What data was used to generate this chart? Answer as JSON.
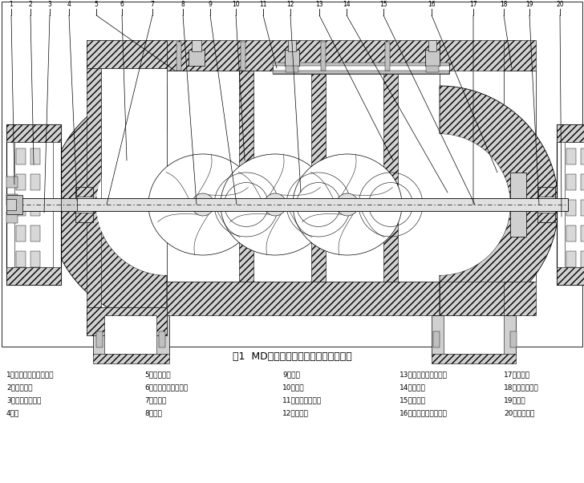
{
  "title": "图1  MD型煤矿用耐磨多级离心泵结构图",
  "bg_color": "#ffffff",
  "fig_width": 7.28,
  "fig_height": 6.02,
  "legend_col1": [
    "1、柱销弹性联轴器部件",
    "2、滚动轴承",
    "3、滚动轴承部件",
    "4、轴"
  ],
  "legend_col2": [
    "5、拉紧螺栓",
    "6、吸入段（进水段）",
    "7、密封环",
    "8、叶轮"
  ],
  "legend_col3": [
    "9、中段",
    "10、导叶",
    "11、平衡水管部件",
    "12、导叶套"
  ],
  "legend_col4": [
    "13、吐出段（出水段）",
    "14、平衡套",
    "15、平衡环",
    "16、填料函体（尾盖）"
  ],
  "legend_col5": [
    "17、平衡盘",
    "18、水封管部件",
    "19、填料",
    "20、填料压盖"
  ]
}
